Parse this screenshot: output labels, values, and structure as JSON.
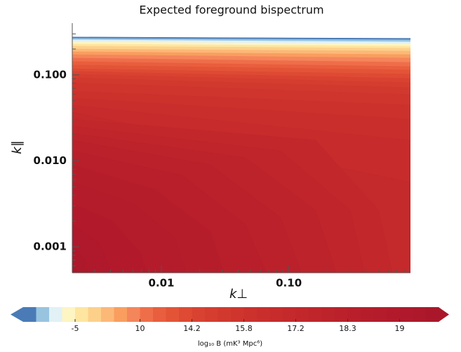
{
  "chart_data": {
    "type": "contourf",
    "title": "Expected foreground bispectrum",
    "xlabel": "k⊥",
    "ylabel": "k∥",
    "xscale": "log",
    "yscale": "log",
    "xlim": [
      0.002,
      0.9
    ],
    "ylim": [
      0.0005,
      0.4
    ],
    "xticks": [
      {
        "value": 0.01,
        "label": "0.01"
      },
      {
        "value": 0.1,
        "label": "0.10"
      }
    ],
    "yticks": [
      0.001,
      {
        "value": 0.01,
        "label": "0.010"
      },
      {
        "value": 0.1,
        "label": "0.100"
      }
    ],
    "xminorticks": [
      0.003,
      0.004,
      0.005,
      0.006,
      0.007,
      0.008,
      0.009,
      0.02,
      0.03,
      0.04,
      0.05,
      0.06,
      0.07,
      0.08,
      0.09,
      0.2,
      0.3,
      0.4,
      0.5,
      0.6,
      0.7,
      0.8
    ],
    "yminorticks": [
      0.0006,
      0.0007,
      0.0008,
      0.0009,
      0.002,
      0.003,
      0.004,
      0.005,
      0.006,
      0.007,
      0.008,
      0.009,
      0.02,
      0.03,
      0.04,
      0.05,
      0.06,
      0.07,
      0.08,
      0.09,
      0.2,
      0.3
    ],
    "contours": [
      {
        "x": [
          0.002,
          0.9
        ],
        "y": [
          0.276,
          0.266
        ]
      },
      {
        "x": [
          0.002,
          0.9
        ],
        "y": [
          0.266,
          0.256
        ]
      },
      {
        "x": [
          0.002,
          0.9
        ],
        "y": [
          0.256,
          0.242
        ]
      },
      {
        "x": [
          0.002,
          0.9
        ],
        "y": [
          0.242,
          0.229
        ]
      },
      {
        "x": [
          0.002,
          0.9
        ],
        "y": [
          0.229,
          0.216
        ]
      },
      {
        "x": [
          0.002,
          0.9
        ],
        "y": [
          0.216,
          0.204
        ]
      },
      {
        "x": [
          0.002,
          0.9
        ],
        "y": [
          0.2,
          0.189
        ]
      },
      {
        "x": [
          0.002,
          0.9
        ],
        "y": [
          0.186,
          0.172
        ]
      },
      {
        "x": [
          0.002,
          0.9
        ],
        "y": [
          0.172,
          0.157
        ]
      },
      {
        "x": [
          0.002,
          0.9
        ],
        "y": [
          0.157,
          0.14
        ]
      },
      {
        "x": [
          0.002,
          0.9
        ],
        "y": [
          0.143,
          0.125
        ]
      },
      {
        "x": [
          0.002,
          0.9
        ],
        "y": [
          0.13,
          0.114
        ]
      },
      {
        "x": [
          0.002,
          0.9
        ],
        "y": [
          0.118,
          0.102
        ]
      },
      {
        "x": [
          0.002,
          0.9
        ],
        "y": [
          0.11,
          0.091
        ]
      },
      {
        "x": [
          0.002,
          0.9
        ],
        "y": [
          0.102,
          0.0813
        ]
      },
      {
        "x": [
          0.002,
          0.9
        ],
        "y": [
          0.0927,
          0.0713
        ]
      },
      {
        "x": [
          0.002,
          0.9
        ],
        "y": [
          0.0813,
          0.0591
        ]
      },
      {
        "x": [
          0.002,
          0.9
        ],
        "y": [
          0.0649,
          0.0446
        ]
      },
      {
        "x": [
          0.002,
          0.9
        ],
        "y": [
          0.0538,
          0.0306
        ]
      },
      {
        "x": [
          0.002,
          0.9
        ],
        "y": [
          0.0446,
          0.0174
        ]
      },
      {
        "x": [
          0.002,
          0.9
        ],
        "y": [
          0.0369,
          0.00564
        ]
      },
      {
        "x": [
          0.002,
          0.162,
          0.505,
          0.65
        ],
        "y": [
          0.0306,
          0.0174,
          0.00266,
          0.0005
        ]
      },
      {
        "x": [
          0.002,
          0.0859,
          0.304,
          0.392
        ],
        "y": [
          0.0254,
          0.0131,
          0.00266,
          0.0005
        ]
      },
      {
        "x": [
          0.002,
          0.0456,
          0.162,
          0.236
        ],
        "y": [
          0.021,
          0.0109,
          0.00266,
          0.0005
        ]
      },
      {
        "x": [
          0.002,
          0.0242,
          0.0859,
          0.126
        ],
        "y": [
          0.0174,
          0.00902,
          0.0022,
          0.0005
        ]
      },
      {
        "x": [
          0.002,
          0.0146,
          0.0456,
          0.0667
        ],
        "y": [
          0.0131,
          0.0068,
          0.00182,
          0.0005
        ]
      },
      {
        "x": [
          0.002,
          0.00881,
          0.0242,
          0.0312
        ],
        "y": [
          0.00902,
          0.00467,
          0.00151,
          0.0005
        ]
      },
      {
        "x": [
          0.002,
          0.00603,
          0.0129,
          0.0156
        ],
        "y": [
          0.00564,
          0.00321,
          0.00125,
          0.0005
        ]
      },
      {
        "x": [
          0.002,
          0.00412,
          0.00684,
          0.00777
        ],
        "y": [
          0.00321,
          0.002,
          0.00086,
          0.0005
        ]
      },
      {
        "x": [
          0.002,
          0.0032,
          0.00412
        ],
        "y": [
          0.00182,
          0.00114,
          0.0005
        ]
      },
      {
        "x": [
          0.002,
          0.00249,
          0.00265
        ],
        "y": [
          0.00104,
          0.000713,
          0.0005
        ]
      },
      {
        "x": [
          0.002,
          0.00219
        ],
        "y": [
          0.000649,
          0.0005
        ]
      }
    ],
    "colorbar": {
      "label": "log₁₀ B (mK³ Mpc⁶)",
      "extend": "both",
      "levels": [
        -25,
        -20,
        -15,
        -10,
        -5,
        -2,
        1,
        4,
        7,
        10,
        11,
        12,
        13,
        14.2,
        14.6,
        15,
        15.4,
        15.8,
        16.2,
        16.5,
        16.9,
        17.2,
        17.5,
        17.8,
        18.0,
        18.3,
        18.5,
        18.7,
        18.85,
        19,
        19.2,
        19.4,
        19.6
      ],
      "colors": [
        "#4a7bb7",
        "#98c4e0",
        "#e1f1f6",
        "#fdf5c2",
        "#fee6a0",
        "#fdd08a",
        "#fcb877",
        "#f99e5f",
        "#f5855a",
        "#ef6e4a",
        "#e95e3e",
        "#e35437",
        "#de4a33",
        "#d94231",
        "#d53d2f",
        "#d2392e",
        "#cf352d",
        "#cc312c",
        "#ca2e2c",
        "#c72b2b",
        "#c4292b",
        "#c2272b",
        "#bf252b",
        "#bd232b",
        "#ba212b",
        "#b81f2b",
        "#b61d2b",
        "#b41c2b",
        "#b21a2b",
        "#af192b",
        "#ad182a",
        "#aa172a"
      ],
      "ticks": [
        -5,
        10,
        14.2,
        15.8,
        17.2,
        18.3,
        19
      ]
    }
  }
}
